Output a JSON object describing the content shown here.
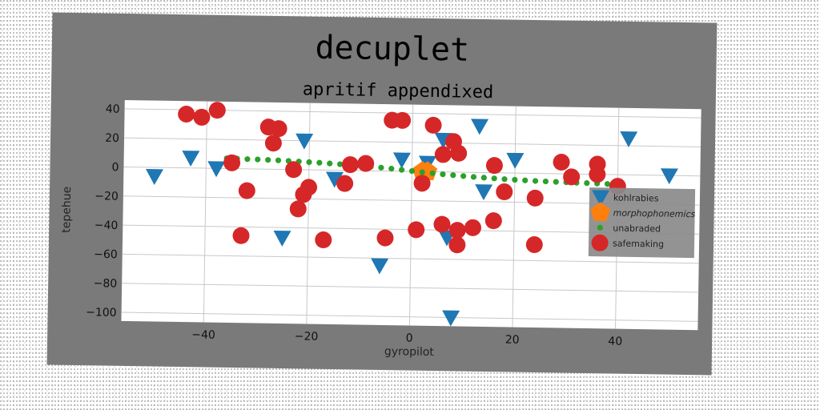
{
  "chart_data": {
    "type": "scatter",
    "title": "decuplet",
    "subtitle": "apritif appendixed",
    "xlabel": "gyropilot",
    "ylabel": "tepehue",
    "xlim": [
      -56,
      56
    ],
    "ylim": [
      -106,
      46
    ],
    "xticks": [
      -40,
      -20,
      0,
      20,
      40
    ],
    "yticks": [
      40,
      20,
      0,
      -20,
      -40,
      -60,
      -80,
      -100
    ],
    "grid": true,
    "legend_position": "right",
    "series": [
      {
        "name": "kohlrabies",
        "marker": "triangle-down",
        "color": "#1f77b4",
        "points": [
          [
            -50,
            -6
          ],
          [
            -43,
            7
          ],
          [
            -38,
            0
          ],
          [
            -25,
            -47
          ],
          [
            -21,
            20
          ],
          [
            -15,
            -6
          ],
          [
            -6,
            -65
          ],
          [
            -2,
            8
          ],
          [
            3,
            6
          ],
          [
            6,
            22
          ],
          [
            7,
            -45
          ],
          [
            8,
            -100
          ],
          [
            13,
            32
          ],
          [
            14,
            -13
          ],
          [
            20,
            9
          ],
          [
            42,
            25
          ],
          [
            50,
            0
          ]
        ]
      },
      {
        "name": "morphophonemics",
        "marker": "pentagon",
        "color": "#ff7f0e",
        "points": [
          [
            2,
            0
          ],
          [
            3,
            0
          ]
        ]
      },
      {
        "name": "unabraded",
        "marker": "dot",
        "color": "#2ca02c",
        "points": [
          [
            -36,
            7
          ],
          [
            -34,
            6.9
          ],
          [
            -32,
            6.7
          ],
          [
            -30,
            6.6
          ],
          [
            -28,
            6.4
          ],
          [
            -26,
            6.2
          ],
          [
            -24,
            5.9
          ],
          [
            -22,
            5.6
          ],
          [
            -20,
            5.3
          ],
          [
            -18,
            5.0
          ],
          [
            -16,
            4.6
          ],
          [
            -14,
            4.2
          ],
          [
            -12,
            3.8
          ],
          [
            -10,
            3.3
          ],
          [
            -8,
            2.8
          ],
          [
            -6,
            2.3
          ],
          [
            -4,
            1.7
          ],
          [
            -2,
            1.0
          ],
          [
            0,
            0.3
          ],
          [
            2,
            -0.4
          ],
          [
            4,
            -1.0
          ],
          [
            6,
            -1.6
          ],
          [
            8,
            -2.1
          ],
          [
            10,
            -2.6
          ],
          [
            12,
            -3.1
          ],
          [
            14,
            -3.5
          ],
          [
            16,
            -3.9
          ],
          [
            18,
            -4.3
          ],
          [
            20,
            -4.6
          ],
          [
            22,
            -4.9
          ],
          [
            24,
            -5.2
          ],
          [
            26,
            -5.4
          ],
          [
            28,
            -5.6
          ],
          [
            30,
            -5.8
          ],
          [
            32,
            -6.0
          ],
          [
            34,
            -6.1
          ],
          [
            36,
            -6.3
          ],
          [
            38,
            -6.5
          ]
        ]
      },
      {
        "name": "safemaking",
        "marker": "circle",
        "color": "#d62728",
        "points": [
          [
            -44,
            37
          ],
          [
            -41,
            35
          ],
          [
            -38,
            40
          ],
          [
            -35,
            4
          ],
          [
            -32,
            -15
          ],
          [
            -33,
            -46
          ],
          [
            -28,
            29
          ],
          [
            -26,
            28
          ],
          [
            -27,
            18
          ],
          [
            -23,
            0
          ],
          [
            -21,
            -17
          ],
          [
            -20,
            -12
          ],
          [
            -22,
            -27
          ],
          [
            -17,
            -48
          ],
          [
            -13,
            -9
          ],
          [
            -12,
            4
          ],
          [
            -9,
            5
          ],
          [
            -5,
            -46
          ],
          [
            -4,
            35
          ],
          [
            -2,
            35
          ],
          [
            1,
            -40
          ],
          [
            2,
            -8
          ],
          [
            4,
            32
          ],
          [
            6,
            12
          ],
          [
            8,
            21
          ],
          [
            9,
            13
          ],
          [
            6,
            -36
          ],
          [
            9,
            -40
          ],
          [
            9,
            -50
          ],
          [
            12,
            -38
          ],
          [
            16,
            5
          ],
          [
            16,
            -33
          ],
          [
            18,
            -13
          ],
          [
            24,
            -17
          ],
          [
            24,
            -49
          ],
          [
            29,
            8
          ],
          [
            31,
            -2
          ],
          [
            36,
            7
          ],
          [
            36,
            0
          ],
          [
            40,
            -8
          ]
        ]
      }
    ]
  }
}
